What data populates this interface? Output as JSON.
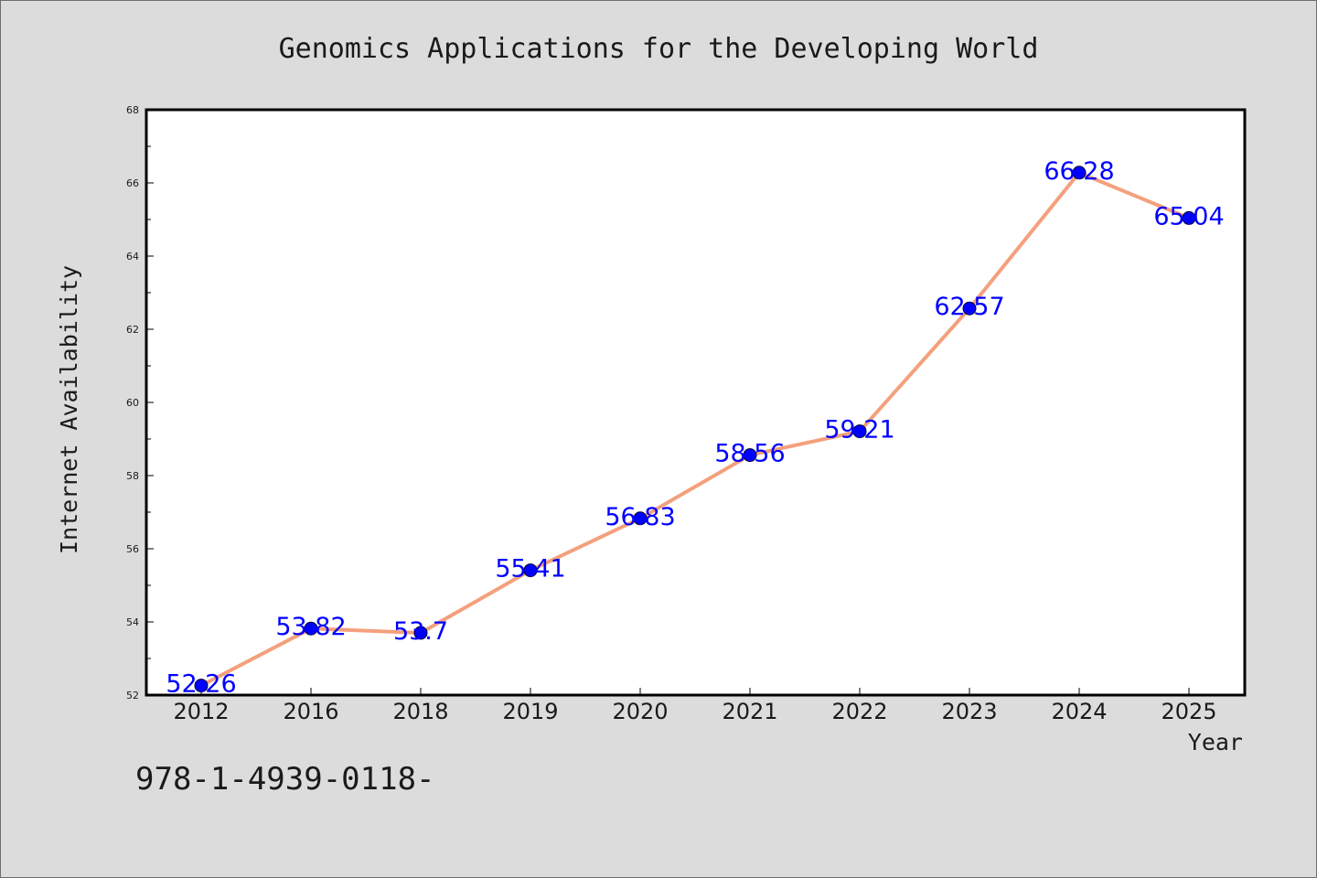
{
  "chart_data": {
    "type": "line",
    "title": "Genomics Applications for the Developing World",
    "xlabel": "Year",
    "ylabel": "Internet Availability",
    "categories": [
      "2012",
      "2016",
      "2018",
      "2019",
      "2020",
      "2021",
      "2022",
      "2023",
      "2024",
      "2025"
    ],
    "series": [
      {
        "values": [
          52.26,
          53.82,
          53.7,
          55.41,
          56.83,
          58.56,
          59.21,
          62.57,
          66.28,
          65.04
        ],
        "data_labels": [
          "52.26",
          "53.82",
          "53.7",
          "55.41",
          "56.83",
          "58.56",
          "59.21",
          "62.57",
          "66.28",
          "65.04"
        ]
      }
    ],
    "ylim": [
      52,
      68
    ],
    "yticks": [
      52,
      54,
      56,
      58,
      60,
      62,
      64,
      66,
      68
    ],
    "grid": false,
    "colors": {
      "line": "#f4a07c",
      "marker": "#0000ff",
      "label": "#0000ff",
      "background": "#dcdcdc",
      "plot_area": "#ffffff"
    }
  },
  "footer": {
    "text": "978-1-4939-0118-"
  }
}
